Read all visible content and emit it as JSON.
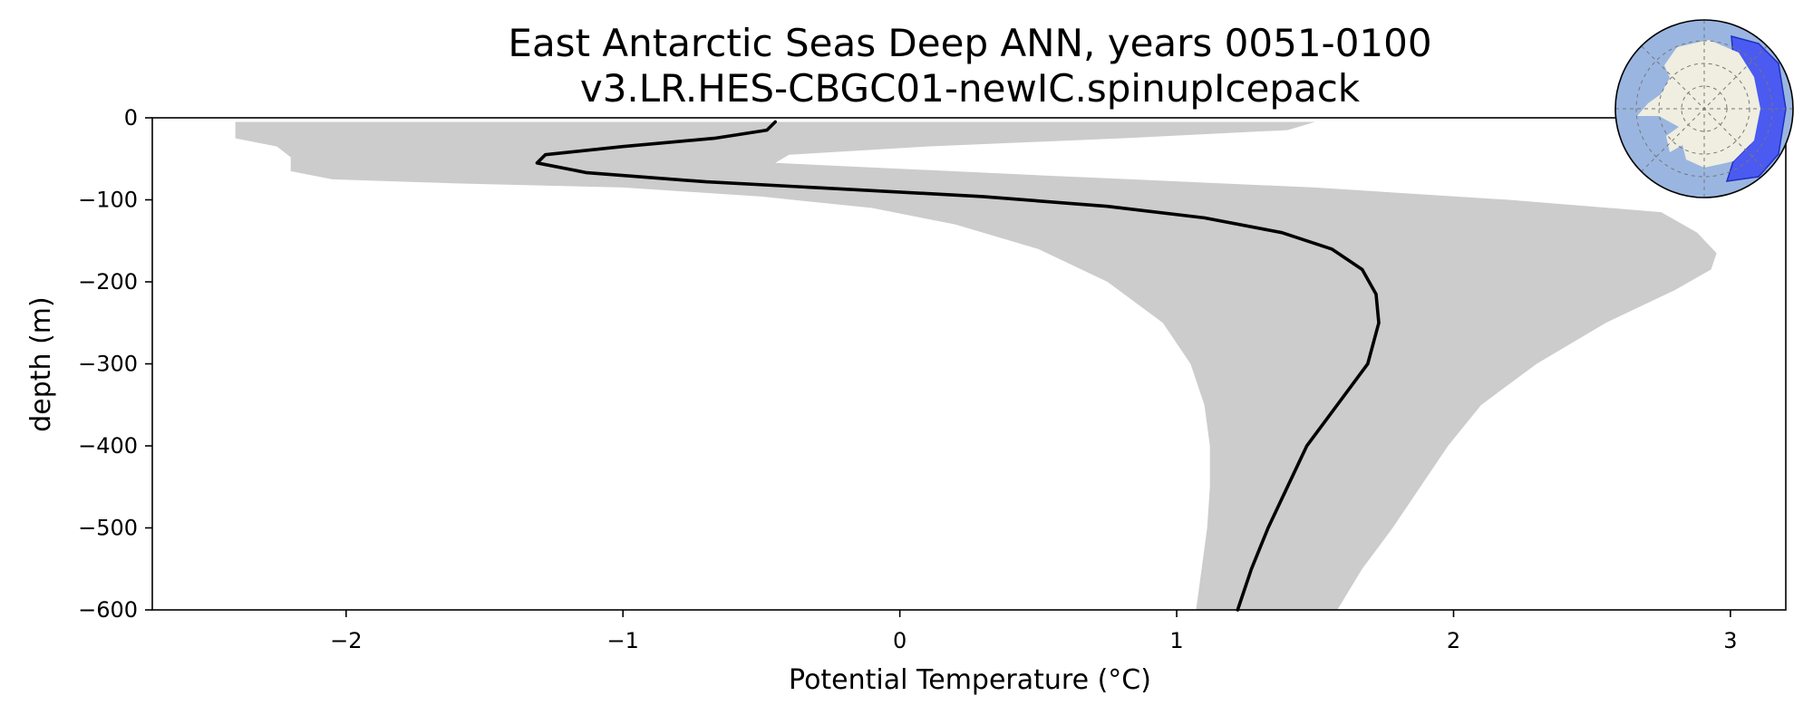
{
  "chart_data": {
    "type": "line",
    "title": "East Antarctic Seas Deep ANN, years 0051-0100",
    "subtitle": "v3.LR.HES-CBGC01-newIC.spinupIcepack",
    "xlabel": "Potential Temperature (°C)",
    "ylabel": "depth (m)",
    "xlim": [
      -2.7,
      3.2
    ],
    "ylim": [
      -600,
      0
    ],
    "xticks": [
      -2,
      -1,
      0,
      1,
      2,
      3
    ],
    "xtick_labels": [
      "−2",
      "−1",
      "0",
      "1",
      "2",
      "3"
    ],
    "yticks": [
      0,
      -100,
      -200,
      -300,
      -400,
      -500,
      -600
    ],
    "ytick_labels": [
      "0",
      "−100",
      "−200",
      "−300",
      "−400",
      "−500",
      "−600"
    ],
    "grid": false,
    "series": [
      {
        "kind": "line",
        "color": "#000000",
        "points": [
          [
            -0.45,
            -5
          ],
          [
            -0.48,
            -15
          ],
          [
            -0.67,
            -25
          ],
          [
            -1.0,
            -35
          ],
          [
            -1.28,
            -45
          ],
          [
            -1.31,
            -55
          ],
          [
            -1.13,
            -67
          ],
          [
            -0.7,
            -78
          ],
          [
            -0.2,
            -87
          ],
          [
            0.3,
            -96
          ],
          [
            0.75,
            -108
          ],
          [
            1.1,
            -122
          ],
          [
            1.38,
            -140
          ],
          [
            1.56,
            -160
          ],
          [
            1.67,
            -185
          ],
          [
            1.72,
            -215
          ],
          [
            1.73,
            -250
          ],
          [
            1.69,
            -300
          ],
          [
            1.58,
            -350
          ],
          [
            1.47,
            -400
          ],
          [
            1.4,
            -450
          ],
          [
            1.33,
            -500
          ],
          [
            1.27,
            -550
          ],
          [
            1.22,
            -600
          ]
        ]
      },
      {
        "kind": "band",
        "color": "#cccccc",
        "lower": [
          [
            -2.4,
            -5
          ],
          [
            -2.4,
            -25
          ],
          [
            -2.25,
            -35
          ],
          [
            -2.2,
            -48
          ],
          [
            -2.2,
            -65
          ],
          [
            -2.05,
            -75
          ],
          [
            -1.6,
            -80
          ],
          [
            -1.0,
            -85
          ],
          [
            -0.5,
            -96
          ],
          [
            -0.1,
            -110
          ],
          [
            0.2,
            -130
          ],
          [
            0.5,
            -160
          ],
          [
            0.75,
            -200
          ],
          [
            0.95,
            -250
          ],
          [
            1.05,
            -300
          ],
          [
            1.1,
            -350
          ],
          [
            1.12,
            -400
          ],
          [
            1.12,
            -450
          ],
          [
            1.11,
            -500
          ],
          [
            1.09,
            -550
          ],
          [
            1.07,
            -600
          ]
        ],
        "upper": [
          [
            1.5,
            -5
          ],
          [
            1.4,
            -15
          ],
          [
            0.8,
            -25
          ],
          [
            0.1,
            -35
          ],
          [
            -0.4,
            -45
          ],
          [
            -0.45,
            -55
          ],
          [
            0.5,
            -70
          ],
          [
            1.5,
            -85
          ],
          [
            2.2,
            -100
          ],
          [
            2.75,
            -115
          ],
          [
            2.88,
            -140
          ],
          [
            2.95,
            -165
          ],
          [
            2.93,
            -185
          ],
          [
            2.8,
            -210
          ],
          [
            2.55,
            -250
          ],
          [
            2.3,
            -300
          ],
          [
            2.1,
            -350
          ],
          [
            1.98,
            -400
          ],
          [
            1.88,
            -450
          ],
          [
            1.78,
            -500
          ],
          [
            1.67,
            -550
          ],
          [
            1.58,
            -600
          ]
        ]
      }
    ]
  },
  "inset_map": {
    "icon": "antarctica-region-map-icon",
    "ocean_color": "#9ab6e0",
    "land_color": "#efeee0",
    "region_color": "#4b5af0"
  }
}
